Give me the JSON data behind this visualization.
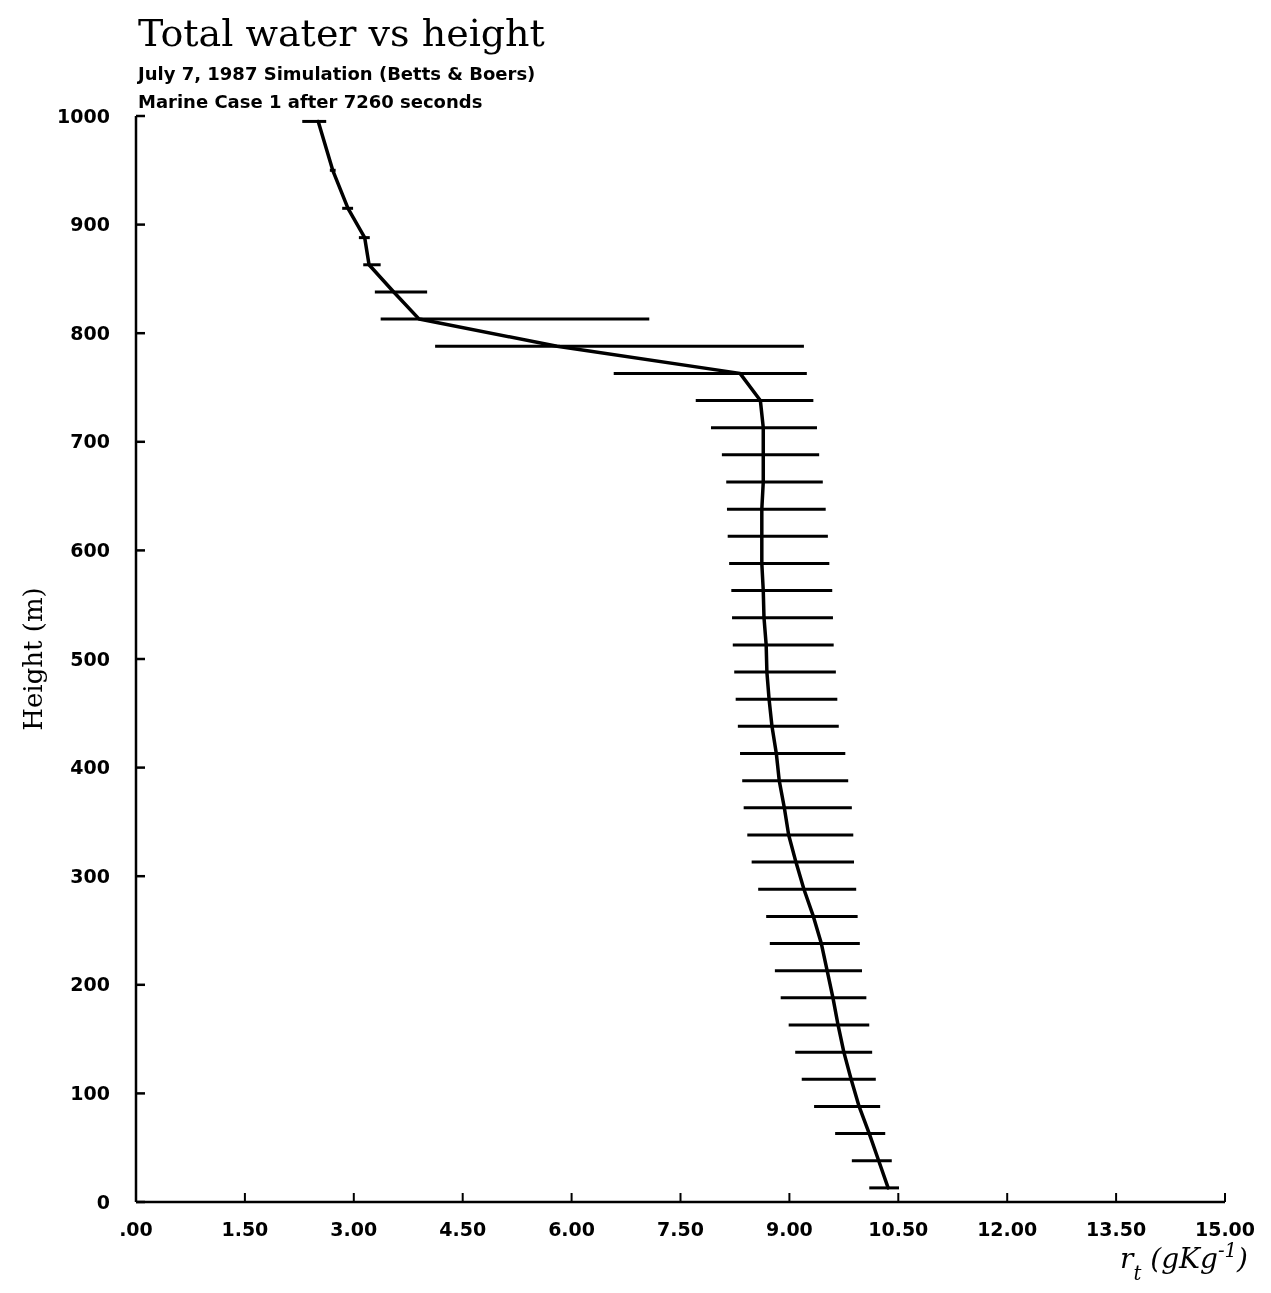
{
  "chart_data": {
    "type": "line",
    "title": "Total water vs height",
    "subtitle": "July 7, 1987 Simulation (Betts & Boers)",
    "annotations": [
      "Marine Case 1 after  7260 seconds"
    ],
    "xlabel": "r$_{t}$ (gKg$^{-1}$)",
    "ylabel": "Height (m)",
    "xlim": [
      0,
      15
    ],
    "ylim": [
      0,
      1000
    ],
    "xticks": [
      {
        "value": 0,
        "label": ".00"
      },
      {
        "value": 1.5,
        "label": "1.50"
      },
      {
        "value": 3,
        "label": "3.00"
      },
      {
        "value": 4.5,
        "label": "4.50"
      },
      {
        "value": 6,
        "label": "6.00"
      },
      {
        "value": 7.5,
        "label": "7.50"
      },
      {
        "value": 9,
        "label": "9.00"
      },
      {
        "value": 10.5,
        "label": "10.50"
      },
      {
        "value": 12,
        "label": "12.00"
      },
      {
        "value": 13.5,
        "label": "13.50"
      },
      {
        "value": 15,
        "label": "15.00"
      }
    ],
    "yticks": [
      0,
      100,
      200,
      300,
      400,
      500,
      600,
      700,
      800,
      900,
      1000
    ],
    "grid": false,
    "marker": "none",
    "line_style": "solid",
    "series": [
      {
        "color": "#000000",
        "x": [
          10.36,
          10.23,
          10.1,
          9.96,
          9.85,
          9.75,
          9.67,
          9.6,
          9.52,
          9.44,
          9.33,
          9.2,
          9.09,
          8.99,
          8.93,
          8.86,
          8.82,
          8.76,
          8.72,
          8.69,
          8.68,
          8.65,
          8.64,
          8.62,
          8.62,
          8.62,
          8.64,
          8.64,
          8.64,
          8.6,
          8.32,
          5.8,
          3.9,
          3.55,
          3.21,
          3.15,
          2.92,
          2.71,
          2.51
        ],
        "values": [
          13,
          38,
          63,
          88,
          113,
          138,
          163,
          188,
          213,
          238,
          263,
          288,
          313,
          338,
          363,
          388,
          413,
          438,
          463,
          488,
          513,
          538,
          563,
          588,
          613,
          638,
          663,
          688,
          713,
          738,
          763,
          788,
          813,
          838,
          863,
          888,
          915,
          950,
          995
        ],
        "xerrors": [
          [
            10.1,
            10.51
          ],
          [
            9.86,
            10.41
          ],
          [
            9.63,
            10.32
          ],
          [
            9.34,
            10.25
          ],
          [
            9.17,
            10.19
          ],
          [
            9.08,
            10.14
          ],
          [
            8.99,
            10.1
          ],
          [
            8.88,
            10.06
          ],
          [
            8.8,
            10.0
          ],
          [
            8.73,
            9.97
          ],
          [
            8.68,
            9.94
          ],
          [
            8.57,
            9.92
          ],
          [
            8.48,
            9.89
          ],
          [
            8.42,
            9.88
          ],
          [
            8.37,
            9.86
          ],
          [
            8.35,
            9.81
          ],
          [
            8.32,
            9.77
          ],
          [
            8.29,
            9.68
          ],
          [
            8.26,
            9.66
          ],
          [
            8.24,
            9.64
          ],
          [
            8.22,
            9.61
          ],
          [
            8.21,
            9.6
          ],
          [
            8.2,
            9.59
          ],
          [
            8.17,
            9.55
          ],
          [
            8.15,
            9.53
          ],
          [
            8.14,
            9.5
          ],
          [
            8.13,
            9.46
          ],
          [
            8.07,
            9.41
          ],
          [
            7.92,
            9.38
          ],
          [
            7.71,
            9.33
          ],
          [
            6.58,
            9.24
          ],
          [
            4.12,
            9.2
          ],
          [
            3.37,
            7.07
          ],
          [
            3.29,
            4.01
          ],
          [
            3.13,
            3.37
          ],
          [
            3.07,
            3.22
          ],
          [
            2.84,
            2.99
          ],
          [
            2.67,
            2.75
          ],
          [
            2.29,
            2.62
          ]
        ]
      }
    ]
  }
}
